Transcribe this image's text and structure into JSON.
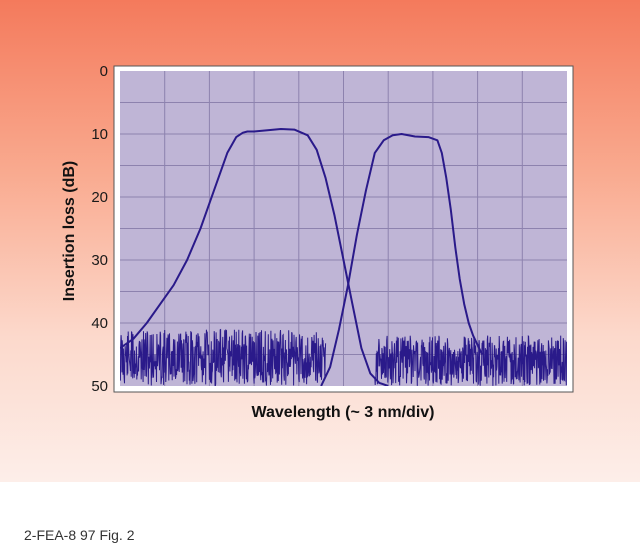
{
  "caption": "2-FEA-8 97 Fig. 2",
  "chart_data": {
    "type": "line",
    "xlabel": "Wavelength (~ 3 nm/div)",
    "ylabel": "Insertion loss (dB)",
    "y_ticks": [
      "0",
      "10",
      "20",
      "30",
      "40",
      "50"
    ],
    "ylim": [
      0,
      50
    ],
    "y_inverted": true,
    "x_divisions": 10,
    "xlim": [
      0,
      10
    ],
    "grid": true,
    "colors": {
      "plot_background": "#bfb5d6",
      "grid": "#8d82ae",
      "trace": "#2a1a8a"
    },
    "series": [
      {
        "x": [
          0.0,
          0.3,
          0.6,
          0.9,
          1.2,
          1.5,
          1.8,
          2.1,
          2.4,
          2.6,
          2.75,
          2.85,
          3.0,
          3.3,
          3.6,
          3.9,
          4.2,
          4.4,
          4.6,
          4.8,
          5.0,
          5.2,
          5.4,
          5.6,
          5.8,
          6.0
        ],
        "y": [
          44,
          42.5,
          40,
          37,
          34,
          30,
          25,
          19,
          13,
          10.5,
          9.8,
          9.6,
          9.6,
          9.4,
          9.2,
          9.3,
          10.2,
          12.5,
          17,
          23,
          30,
          37,
          44,
          48,
          49.5,
          50
        ]
      },
      {
        "x": [
          4.5,
          4.7,
          4.9,
          5.1,
          5.3,
          5.5,
          5.7,
          5.9,
          6.1,
          6.3,
          6.6,
          6.9,
          7.1,
          7.2,
          7.3,
          7.4,
          7.5,
          7.6,
          7.7,
          7.8,
          7.9,
          8.0,
          8.1
        ],
        "y": [
          50,
          47,
          41,
          34,
          26,
          19,
          13,
          11,
          10.2,
          10.0,
          10.4,
          10.5,
          11,
          13,
          17,
          22,
          28,
          33,
          37,
          40,
          42,
          43.5,
          45
        ]
      }
    ]
  }
}
